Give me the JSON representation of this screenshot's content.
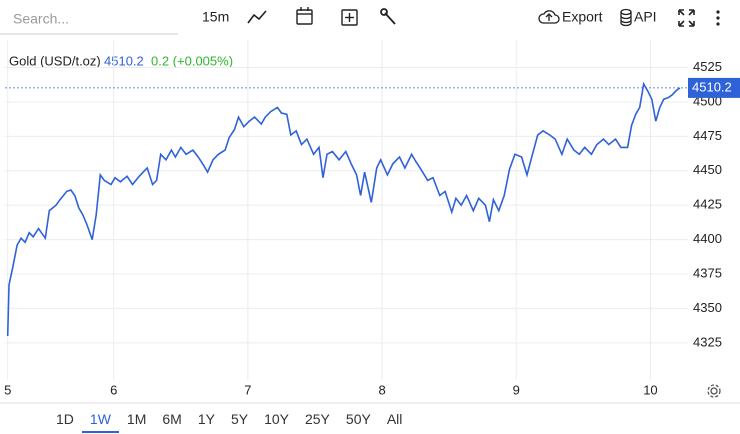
{
  "toolbar": {
    "search_placeholder": "Search...",
    "interval": "15m",
    "export": "Export",
    "api": "API"
  },
  "chart_data": {
    "type": "line",
    "title": "Gold (USD/t.oz)",
    "price": "4510.2",
    "change": "0.2 (+0.005%)",
    "color": "#2f62d9",
    "x": [
      5.21,
      5.22,
      5.25,
      5.28,
      5.31,
      5.34,
      5.37,
      5.4,
      5.44,
      5.49,
      5.52,
      5.57,
      5.6,
      5.65,
      5.68,
      5.71,
      5.74,
      5.77,
      5.8,
      5.84,
      5.87,
      5.9,
      5.93,
      5.98,
      6.01,
      6.05,
      6.1,
      6.14,
      6.19,
      6.22,
      6.25,
      6.29,
      6.32,
      6.35,
      6.39,
      6.43,
      6.46,
      6.5,
      6.54,
      6.59,
      6.63,
      6.67,
      6.7,
      6.74,
      6.78,
      6.83,
      6.86,
      6.9,
      6.93,
      6.97,
      7.01,
      7.05,
      7.1,
      7.13,
      7.17,
      7.22,
      7.25,
      7.29,
      7.32,
      7.36,
      7.4,
      7.44,
      7.49,
      7.53,
      7.56,
      7.59,
      7.63,
      7.68,
      7.73,
      7.77,
      7.81,
      7.84,
      7.87,
      7.92,
      7.96,
      7.99,
      8.04,
      8.08,
      8.13,
      8.17,
      8.22,
      8.25,
      8.29,
      8.34,
      8.38,
      8.43,
      8.47,
      8.52,
      8.55,
      8.59,
      8.63,
      8.68,
      8.72,
      8.77,
      8.8,
      8.83,
      8.87,
      8.91,
      8.95,
      8.99,
      9.04,
      9.08,
      9.11,
      9.16,
      9.2,
      9.25,
      9.29,
      9.34,
      9.38,
      9.43,
      9.47,
      9.51,
      9.56,
      9.6,
      9.65,
      9.69,
      9.74,
      9.78,
      9.83,
      9.86,
      9.89,
      9.92,
      9.95,
      9.98,
      10.01,
      10.04,
      10.07,
      10.1,
      10.13,
      10.16,
      10.19,
      10.22
    ],
    "values": [
      4330,
      4367,
      4381,
      4396,
      4401,
      4398,
      4405,
      4402,
      4408,
      4401,
      4421,
      4425,
      4429,
      4435,
      4436,
      4432,
      4423,
      4418,
      4411,
      4400,
      4418,
      4447,
      4443,
      4440,
      4445,
      4442,
      4446,
      4440,
      4446,
      4449,
      4452,
      4440,
      4443,
      4462,
      4458,
      4465,
      4460,
      4467,
      4462,
      4465,
      4460,
      4454,
      4449,
      4458,
      4462,
      4465,
      4474,
      4480,
      4489,
      4482,
      4486,
      4489,
      4484,
      4489,
      4493,
      4496,
      4492,
      4491,
      4476,
      4479,
      4469,
      4473,
      4462,
      4467,
      4445,
      4462,
      4464,
      4458,
      4464,
      4455,
      4447,
      4432,
      4449,
      4427,
      4452,
      4458,
      4447,
      4455,
      4460,
      4452,
      4462,
      4457,
      4451,
      4443,
      4445,
      4432,
      4435,
      4420,
      4430,
      4425,
      4432,
      4421,
      4430,
      4425,
      4413,
      4429,
      4421,
      4432,
      4451,
      4462,
      4460,
      4447,
      4458,
      4476,
      4479,
      4476,
      4473,
      4462,
      4473,
      4465,
      4462,
      4467,
      4462,
      4469,
      4473,
      4469,
      4473,
      4467,
      4467,
      4483,
      4491,
      4496,
      4513,
      4508,
      4502,
      4486,
      4496,
      4502,
      4503,
      4505,
      4508,
      4510.2
    ],
    "xlim": [
      5.19,
      10.28
    ],
    "xticks": [
      {
        "value": 5.21,
        "label": "5"
      },
      6,
      7,
      8,
      9,
      10
    ],
    "ylim": [
      4298,
      4545
    ],
    "yticks": [
      4325,
      4350,
      4375,
      4400,
      4425,
      4450,
      4475,
      4500,
      4525
    ],
    "grid": true
  },
  "ranges": {
    "options": [
      "1D",
      "1W",
      "1M",
      "6M",
      "1Y",
      "5Y",
      "10Y",
      "25Y",
      "50Y",
      "All"
    ],
    "selected_index": 1
  }
}
